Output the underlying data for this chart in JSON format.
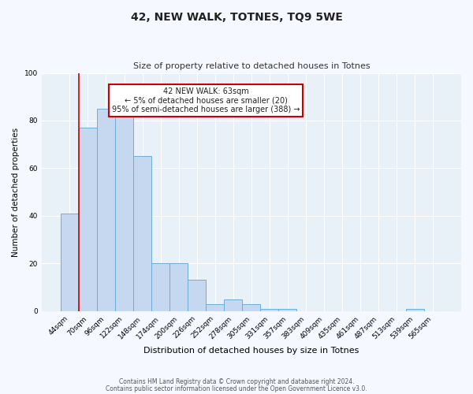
{
  "title": "42, NEW WALK, TOTNES, TQ9 5WE",
  "subtitle": "Size of property relative to detached houses in Totnes",
  "xlabel": "Distribution of detached houses by size in Totnes",
  "ylabel": "Number of detached properties",
  "bin_labels": [
    "44sqm",
    "70sqm",
    "96sqm",
    "122sqm",
    "148sqm",
    "174sqm",
    "200sqm",
    "226sqm",
    "252sqm",
    "278sqm",
    "305sqm",
    "331sqm",
    "357sqm",
    "383sqm",
    "409sqm",
    "435sqm",
    "461sqm",
    "487sqm",
    "513sqm",
    "539sqm",
    "565sqm"
  ],
  "bin_values": [
    41,
    77,
    85,
    83,
    65,
    20,
    20,
    13,
    3,
    5,
    3,
    1,
    1,
    0,
    0,
    0,
    0,
    0,
    0,
    1,
    0
  ],
  "bar_color": "#c5d8f0",
  "bar_edge_color": "#6baed6",
  "ylim": [
    0,
    100
  ],
  "yticks": [
    0,
    20,
    40,
    60,
    80,
    100
  ],
  "annotation_line1": "42 NEW WALK: 63sqm",
  "annotation_line2": "← 5% of detached houses are smaller (20)",
  "annotation_line3": "95% of semi-detached houses are larger (388) →",
  "vline_color": "#cc0000",
  "box_edge_color": "#cc0000",
  "footer_line1": "Contains HM Land Registry data © Crown copyright and database right 2024.",
  "footer_line2": "Contains public sector information licensed under the Open Government Licence v3.0.",
  "fig_bg_color": "#f5f8fe",
  "plot_bg_color": "#e8f0f8"
}
